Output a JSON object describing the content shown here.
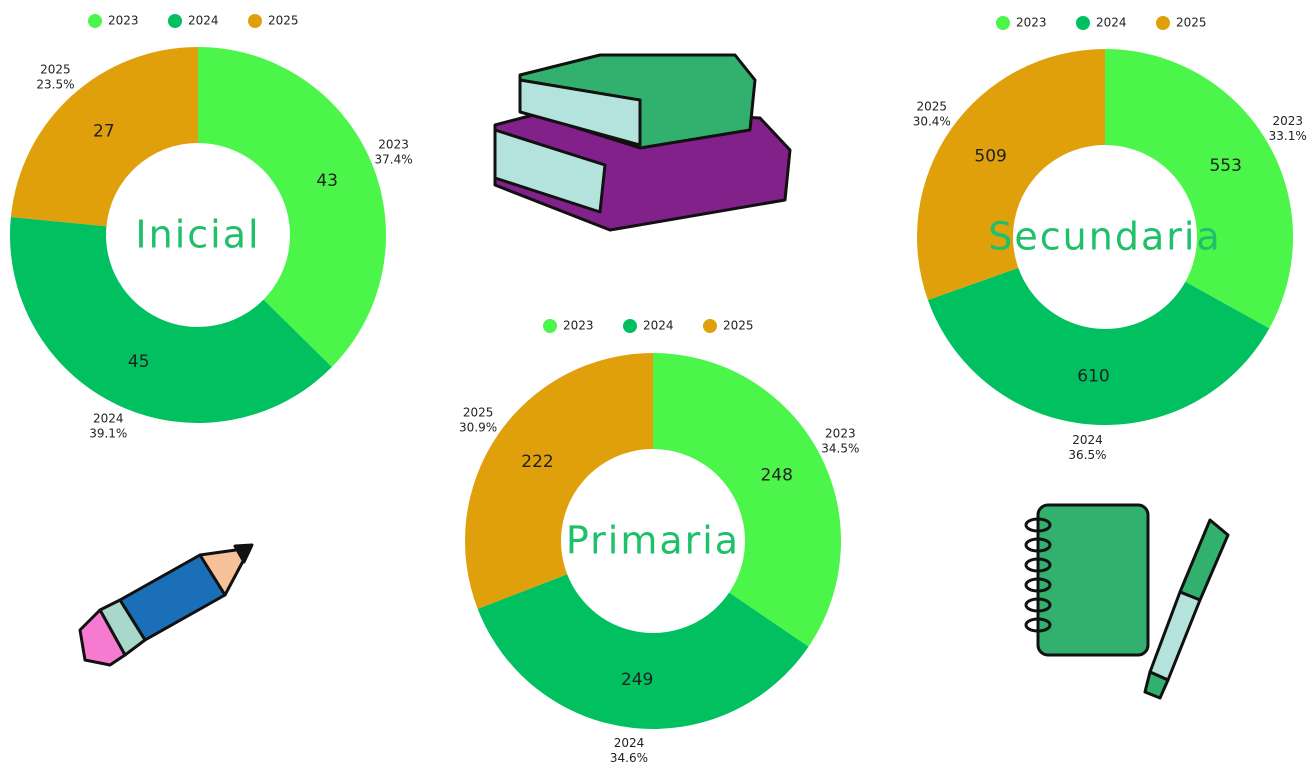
{
  "chart_data": [
    {
      "type": "donut",
      "title": "Inicial",
      "categories": [
        "2023",
        "2024",
        "2025"
      ],
      "values": [
        43,
        45,
        27
      ],
      "percents": [
        37.4,
        39.1,
        23.5
      ],
      "percent_labels": [
        "37.4%",
        "39.1%",
        "23.5%"
      ],
      "colors": [
        "#4cf54a",
        "#00c060",
        "#e0a00c"
      ],
      "legend": "top"
    },
    {
      "type": "donut",
      "title": "Primaria",
      "categories": [
        "2023",
        "2024",
        "2025"
      ],
      "values": [
        248,
        249,
        222
      ],
      "percents": [
        34.5,
        34.6,
        30.9
      ],
      "percent_labels": [
        "34.5%",
        "34.6%",
        "30.9%"
      ],
      "colors": [
        "#4cf54a",
        "#00c060",
        "#e0a00c"
      ],
      "legend": "top"
    },
    {
      "type": "donut",
      "title": "Secundaria",
      "categories": [
        "2023",
        "2024",
        "2025"
      ],
      "values": [
        553,
        610,
        509
      ],
      "percents": [
        33.1,
        36.5,
        30.4
      ],
      "percent_labels": [
        "33.1%",
        "36.5%",
        "30.4%"
      ],
      "colors": [
        "#4cf54a",
        "#00c060",
        "#e0a00c"
      ],
      "legend": "top"
    }
  ]
}
